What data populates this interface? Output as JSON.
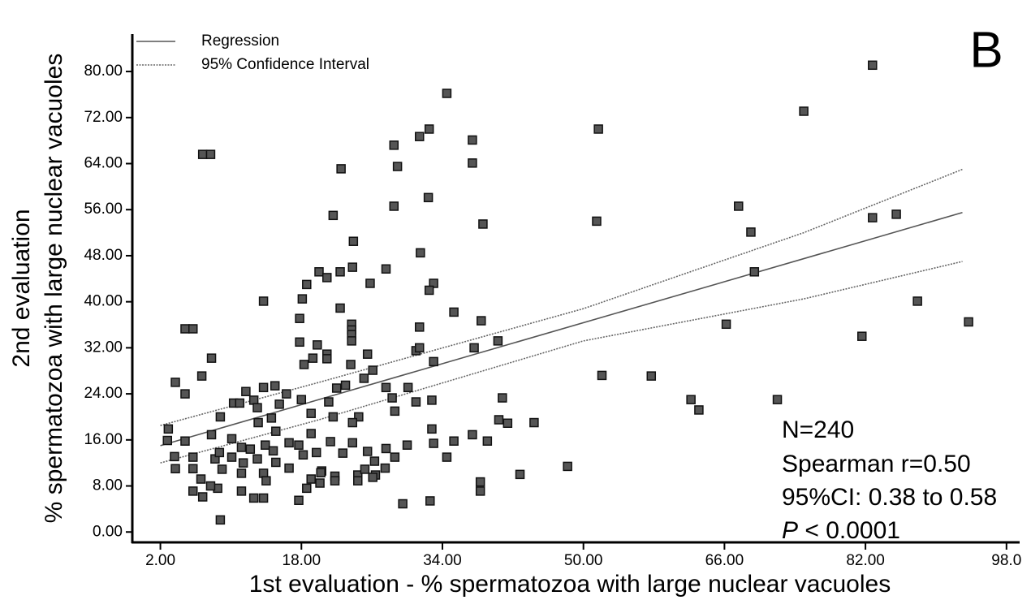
{
  "chart_data": {
    "type": "scatter",
    "panel_label": "B",
    "xlabel": "1st evaluation - % spermatozoa with large nuclear vacuoles",
    "ylabel": [
      "2nd evaluation",
      "% spermatozoa with large nuclear vacuoles"
    ],
    "xlim": [
      -1,
      99.4
    ],
    "ylim": [
      -1.8,
      86.5
    ],
    "xticks": [
      {
        "value": 2,
        "label": "2.00"
      },
      {
        "value": 18,
        "label": "18.00"
      },
      {
        "value": 34,
        "label": "34.00"
      },
      {
        "value": 50,
        "label": "50.00"
      },
      {
        "value": 66,
        "label": "66.00"
      },
      {
        "value": 82,
        "label": "82.00"
      },
      {
        "value": 98,
        "label": "98.0"
      }
    ],
    "yticks": [
      {
        "value": 0,
        "label": "0.00"
      },
      {
        "value": 8,
        "label": "8.00"
      },
      {
        "value": 16,
        "label": "16.00"
      },
      {
        "value": 24,
        "label": "24.00"
      },
      {
        "value": 32,
        "label": "32.00"
      },
      {
        "value": 40,
        "label": "40.00"
      },
      {
        "value": 48,
        "label": "48.00"
      },
      {
        "value": 56,
        "label": "56.00"
      },
      {
        "value": 64,
        "label": "64.00"
      },
      {
        "value": 72,
        "label": "72.00"
      },
      {
        "value": 80,
        "label": "80.00"
      }
    ],
    "regression": {
      "name": "Regression",
      "color": "#555555",
      "x": [
        2,
        93
      ],
      "values": [
        15,
        55.5
      ]
    },
    "confidence_interval": {
      "name": "95% Confidence Interval",
      "color": "#666666",
      "x": [
        2,
        20,
        50,
        75,
        93
      ],
      "upper": [
        18.5,
        26.0,
        38.8,
        52.0,
        63.0
      ],
      "lower": [
        12.0,
        19.5,
        33.2,
        40.5,
        47.0
      ]
    },
    "points": {
      "color": "#555555",
      "x": [
        82.8,
        75.0,
        34.5,
        32.5,
        31.4,
        28.5,
        28.9,
        37.4,
        37.4,
        51.7,
        6.8,
        7.7,
        22.5,
        32.4,
        28.5,
        21.6,
        38.6,
        23.9,
        31.5,
        27.6,
        23.8,
        22.4,
        20.0,
        20.9,
        18.6,
        25.8,
        33.0,
        32.5,
        18.1,
        13.7,
        22.4,
        35.3,
        17.8,
        38.4,
        23.7,
        23.7,
        31.4,
        23.7,
        23.7,
        17.8,
        19.8,
        37.6,
        31.0,
        31.4,
        25.5,
        20.9,
        20.9,
        19.3,
        40.3,
        33.0,
        18.3,
        23.6,
        26.1,
        25.1,
        23.0,
        30.1,
        27.6,
        28.3,
        22.0,
        7.8,
        4.8,
        5.7,
        6.7,
        3.7,
        4.8,
        13.7,
        15.0,
        18.0,
        21.1,
        12.6,
        10.3,
        11.0,
        11.7,
        13.0,
        15.5,
        16.3,
        14.6,
        19.1,
        21.6,
        24.5,
        31.0,
        32.8,
        28.6,
        40.8,
        40.4,
        41.4,
        44.4,
        8.8,
        2.9,
        4.8,
        7.8,
        10.1,
        32.8,
        37.4,
        35.3,
        39.1,
        33.0,
        30.0,
        27.6,
        25.5,
        19.1,
        21.3,
        23.8,
        23.8,
        15.1,
        13.9,
        11.2,
        12.2,
        16.6,
        17.7,
        19.7,
        22.7,
        13.1,
        18.2,
        20.3,
        15.1,
        14.8,
        13.0,
        11.4,
        10.1,
        9.0,
        11.2,
        13.7,
        16.6,
        19.1,
        20.2,
        24.4,
        26.4,
        25.2,
        26.3,
        28.6,
        27.5,
        34.5,
        24.4,
        26.1,
        21.8,
        21.8,
        38.3,
        38.3,
        42.8,
        48.2,
        29.5,
        32.6,
        17.7,
        18.6,
        20.1,
        14.0,
        13.7,
        12.6,
        11.2,
        8.5,
        6.8,
        5.7,
        7.7,
        8.8,
        3.7,
        5.7,
        6.6,
        5.7,
        3.6,
        8.2,
        8.7,
        66.2,
        67.6,
        69.0,
        69.4,
        82.8,
        85.5,
        87.9,
        81.6,
        93.7,
        51.5,
        52.1,
        57.7,
        62.2,
        63.1,
        72.0,
        2.8
      ],
      "values": [
        81.1,
        73.1,
        76.2,
        70.0,
        68.7,
        67.2,
        63.5,
        68.1,
        64.1,
        70.0,
        65.6,
        65.6,
        63.1,
        58.1,
        56.6,
        55.0,
        53.5,
        50.5,
        48.5,
        45.7,
        46.0,
        45.2,
        45.2,
        44.2,
        43.0,
        43.2,
        43.2,
        42.0,
        40.5,
        40.1,
        38.9,
        38.2,
        37.1,
        36.7,
        36.1,
        35.1,
        35.6,
        34.3,
        33.2,
        33.0,
        32.5,
        32.0,
        31.5,
        32.0,
        30.9,
        30.9,
        30.1,
        30.2,
        33.2,
        29.6,
        29.1,
        29.1,
        28.1,
        26.7,
        25.5,
        25.1,
        25.1,
        23.3,
        25.0,
        30.2,
        35.3,
        35.3,
        27.1,
        26.0,
        24.0,
        25.1,
        25.4,
        23.0,
        22.6,
        22.9,
        22.4,
        22.4,
        24.4,
        21.6,
        22.2,
        24.0,
        19.8,
        20.6,
        20.0,
        20.0,
        22.6,
        22.9,
        21.0,
        23.3,
        19.5,
        18.9,
        19.0,
        20.0,
        17.9,
        15.8,
        16.9,
        16.2,
        17.9,
        16.9,
        15.8,
        15.8,
        15.4,
        15.1,
        14.5,
        14.0,
        17.1,
        15.7,
        15.5,
        19.0,
        17.5,
        15.1,
        14.7,
        14.4,
        15.5,
        15.1,
        13.8,
        13.7,
        19.0,
        13.4,
        10.6,
        12.1,
        14.1,
        12.7,
        12.0,
        13.0,
        10.9,
        10.2,
        10.2,
        11.1,
        9.2,
        10.3,
        9.9,
        9.9,
        10.9,
        12.3,
        13.0,
        11.1,
        13.0,
        8.9,
        9.5,
        9.7,
        8.9,
        8.7,
        7.1,
        10.0,
        11.4,
        4.9,
        5.4,
        5.5,
        7.6,
        8.5,
        8.9,
        5.9,
        5.9,
        7.1,
        7.6,
        6.1,
        7.1,
        8.0,
        2.1,
        11.0,
        11.0,
        9.2,
        13.0,
        13.1,
        12.7,
        13.8,
        36.1,
        56.6,
        52.1,
        45.2,
        54.6,
        55.2,
        40.1,
        34.0,
        36.5,
        54.0,
        27.2,
        27.1,
        23.0,
        21.2,
        23.0,
        15.9
      ]
    },
    "annotations": [
      "N=240",
      "Spearman r=0.50",
      "95%CI: 0.38 to 0.58"
    ],
    "p_value": [
      "P",
      " < 0.0001"
    ]
  }
}
